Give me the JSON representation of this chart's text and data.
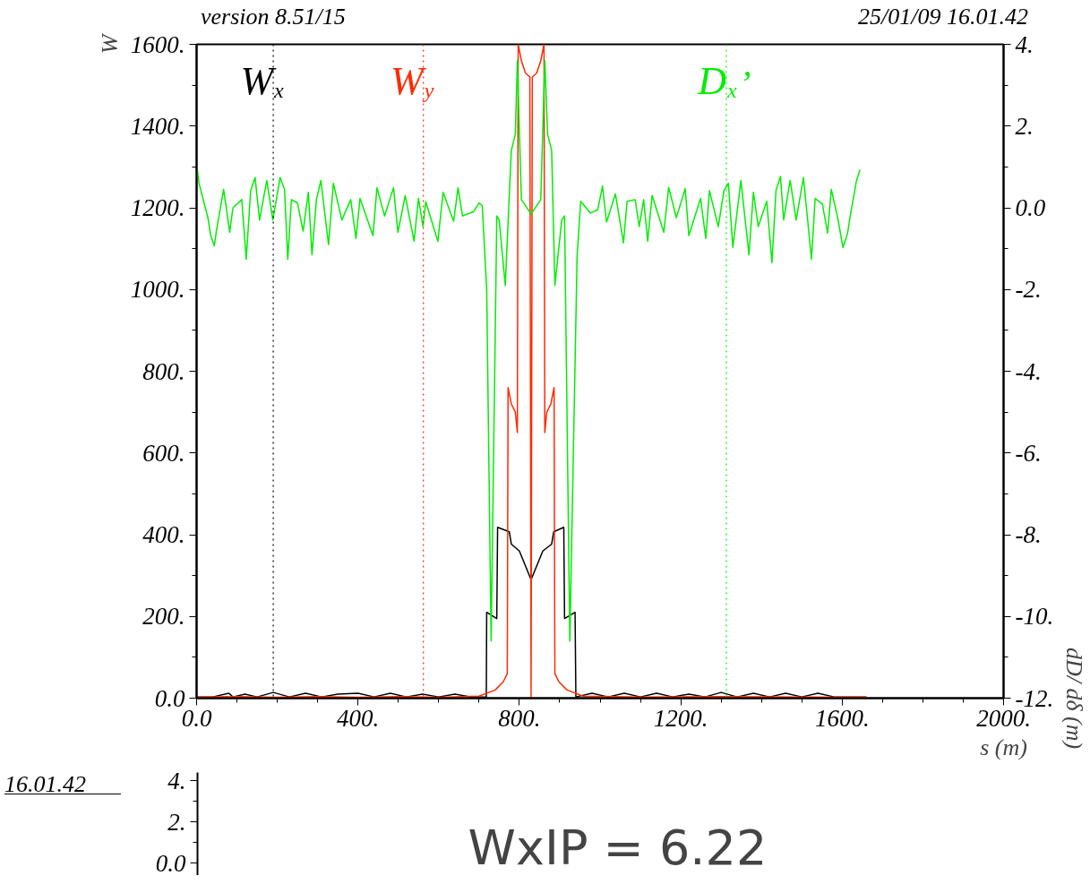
{
  "chart_data": [
    {
      "type": "line",
      "ylabel": "W",
      "xlabel": "s (m)",
      "y2label": "dD/ dδ (m)",
      "annotations": [
        "version 8.51/15",
        "25/01/09  16.01.42"
      ],
      "xlim": [
        0,
        2000
      ],
      "xticks": [
        {
          "value": 0,
          "label": "0.0"
        },
        {
          "value": 400,
          "label": "400."
        },
        {
          "value": 800,
          "label": "800."
        },
        {
          "value": 1200,
          "label": "1200."
        },
        {
          "value": 1600,
          "label": "1600."
        },
        {
          "value": 2000,
          "label": "2000."
        }
      ],
      "ylim": [
        0,
        1600
      ],
      "yticks": [
        {
          "value": 0,
          "label": "0.0"
        },
        {
          "value": 200,
          "label": "200."
        },
        {
          "value": 400,
          "label": "400."
        },
        {
          "value": 600,
          "label": "600."
        },
        {
          "value": 800,
          "label": "800."
        },
        {
          "value": 1000,
          "label": "1000."
        },
        {
          "value": 1200,
          "label": "1200."
        },
        {
          "value": 1400,
          "label": "1400."
        },
        {
          "value": 1600,
          "label": "1600."
        }
      ],
      "y2lim": [
        -12,
        4
      ],
      "y2ticks": [
        {
          "value": 4,
          "label": "4."
        },
        {
          "value": 2,
          "label": "2."
        },
        {
          "value": 0,
          "label": "0.0"
        },
        {
          "value": -2,
          "label": "-2."
        },
        {
          "value": -4,
          "label": "-4."
        },
        {
          "value": -6,
          "label": "-6."
        },
        {
          "value": -8,
          "label": "-8."
        },
        {
          "value": -10,
          "label": "-10."
        },
        {
          "value": -12,
          "label": "-12."
        }
      ],
      "grid": false,
      "marker": "none",
      "line_style": "solid",
      "ref_lines": [
        {
          "axis": "x",
          "value": 190,
          "label": "W$_{x}$",
          "color": "#000000",
          "line_style": "dotted"
        },
        {
          "axis": "x",
          "value": 562,
          "label": "W$_{y}$",
          "color": "#ff2a00",
          "line_style": "dotted"
        },
        {
          "axis": "x",
          "value": 1313,
          "label": "D$_{x}$’",
          "color": "#00ee00",
          "line_style": "dotted"
        }
      ],
      "series": [
        {
          "color": "#000000",
          "x": [
            0,
            40,
            80,
            90,
            120,
            150,
            190,
            230,
            270,
            310,
            350,
            400,
            440,
            480,
            520,
            560,
            600,
            640,
            680,
            718,
            719,
            744,
            746,
            775,
            780,
            800,
            829,
            858,
            880,
            885,
            910,
            912,
            938,
            940,
            980,
            1020,
            1060,
            1100,
            1140,
            1180,
            1220,
            1260,
            1300,
            1340,
            1380,
            1420,
            1460,
            1500,
            1540,
            1580,
            1620,
            1660
          ],
          "values": [
            3,
            3,
            12,
            3,
            10,
            3,
            14,
            3,
            12,
            3,
            10,
            12,
            3,
            12,
            3,
            10,
            3,
            10,
            3,
            3,
            210,
            195,
            418,
            407,
            377,
            360,
            290,
            360,
            377,
            407,
            418,
            195,
            210,
            3,
            12,
            3,
            12,
            3,
            12,
            3,
            10,
            3,
            14,
            3,
            12,
            3,
            12,
            3,
            12,
            3,
            3,
            3
          ]
        },
        {
          "color": "#ff2a00",
          "x": [
            0,
            100,
            200,
            300,
            400,
            500,
            600,
            700,
            740,
            760,
            770,
            772,
            780,
            790,
            795,
            797,
            805,
            815,
            826,
            829,
            832,
            843,
            853,
            861,
            863,
            868,
            878,
            886,
            888,
            898,
            918,
            958,
            1100,
            1300,
            1500,
            1660
          ],
          "values": [
            2,
            4,
            2,
            4,
            2,
            4,
            2,
            5,
            20,
            40,
            60,
            760,
            720,
            700,
            650,
            1600,
            1560,
            1530,
            1520,
            0,
            1520,
            1530,
            1560,
            1600,
            650,
            700,
            720,
            760,
            60,
            40,
            20,
            5,
            3,
            4,
            3,
            2
          ]
        },
        {
          "color": "#00ee00",
          "axis": "y2",
          "x": [
            2,
            6,
            28,
            35,
            44,
            49,
            67,
            82,
            90,
            112,
            123,
            134,
            145,
            156,
            174,
            189,
            207,
            218,
            226,
            235,
            250,
            264,
            277,
            286,
            297,
            308,
            327,
            339,
            360,
            382,
            395,
            405,
            437,
            447,
            466,
            488,
            499,
            517,
            539,
            550,
            561,
            568,
            598,
            611,
            637,
            648,
            659,
            686,
            700,
            708,
            719,
            730,
            744,
            750,
            765,
            780,
            790,
            795,
            805,
            829,
            853,
            863,
            870,
            880,
            888,
            905,
            912,
            925,
            943,
            952,
            976,
            994,
            1006,
            1016,
            1038,
            1058,
            1067,
            1087,
            1097,
            1108,
            1118,
            1129,
            1158,
            1170,
            1189,
            1211,
            1220,
            1249,
            1262,
            1271,
            1293,
            1307,
            1318,
            1329,
            1349,
            1369,
            1380,
            1392,
            1413,
            1426,
            1436,
            1447,
            1455,
            1471,
            1486,
            1504,
            1524,
            1533,
            1551,
            1564,
            1573,
            1588,
            1602,
            1613,
            1620,
            1635,
            1644
          ],
          "values": [
            0.93,
            0.6,
            -0.24,
            -0.68,
            -0.93,
            -0.57,
            0.45,
            -0.6,
            0,
            0.2,
            -1.26,
            0.42,
            0.74,
            -0.3,
            0.67,
            -0.3,
            0.74,
            0.45,
            -1.26,
            0.2,
            0.12,
            -0.57,
            0.38,
            -1.15,
            0.2,
            0.67,
            -0.9,
            0.6,
            -0.3,
            0.2,
            -0.75,
            0.23,
            -0.68,
            0.49,
            -0.2,
            0.49,
            -0.6,
            0.3,
            -0.82,
            0.23,
            -0.46,
            0.15,
            -0.82,
            0.38,
            -0.33,
            0.49,
            -0.2,
            -0.1,
            0.12,
            0.05,
            -2.0,
            -10.6,
            -0.2,
            -0.3,
            -1.9,
            1.4,
            1.8,
            3.6,
            0.2,
            -0.15,
            0.2,
            3.6,
            1.8,
            1.4,
            -1.9,
            -0.3,
            -0.2,
            -10.6,
            -1.19,
            0.16,
            -0.13,
            -0.05,
            0.53,
            -0.35,
            0.34,
            -0.86,
            0.16,
            0.2,
            -0.46,
            0.2,
            -0.82,
            0.3,
            -0.6,
            0.5,
            -0.24,
            0.47,
            -0.68,
            0.23,
            -0.75,
            0.42,
            -0.46,
            0.42,
            0.6,
            -0.97,
            0.67,
            -1.15,
            0.38,
            -0.46,
            0.16,
            -1.34,
            0.42,
            0.77,
            -0.3,
            0.67,
            -0.3,
            0.74,
            -1.26,
            0.23,
            0.09,
            -0.62,
            0.45,
            -0.2,
            -0.97,
            -0.64,
            -0.2,
            0.64,
            0.93
          ]
        }
      ]
    },
    {
      "type": "other",
      "annotations": [
        "16.01.42",
        "4.",
        "2.",
        "0.0",
        "WxIP = 6.22"
      ]
    }
  ]
}
